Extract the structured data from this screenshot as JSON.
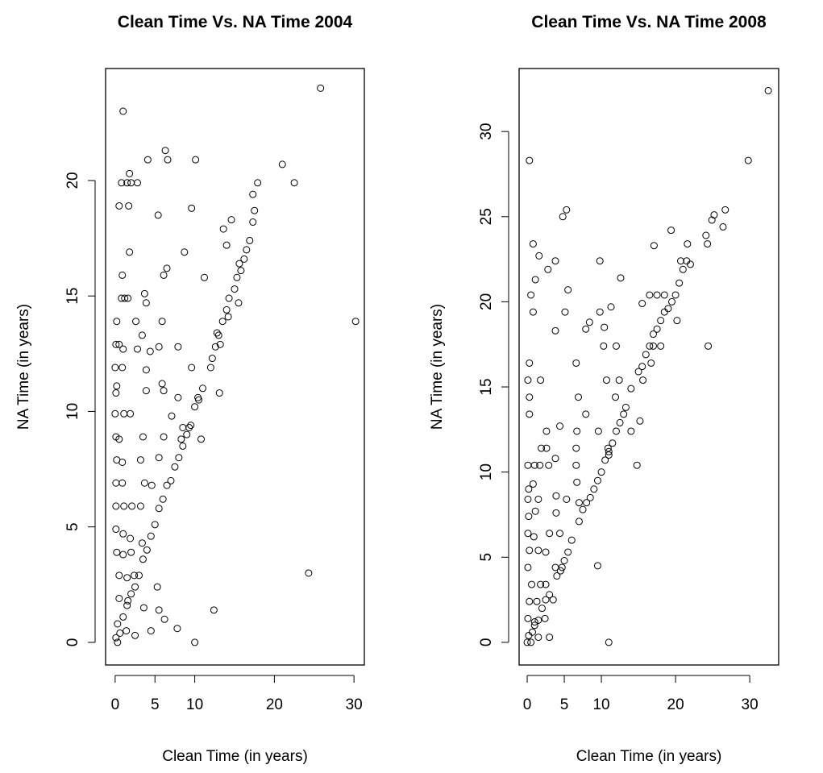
{
  "chart_data": [
    {
      "type": "scatter",
      "title": "Clean Time Vs. NA Time 2004",
      "x_label": "Clean Time (in years)",
      "y_label": "NA Time (in years)",
      "color": "#000000",
      "xlim": [
        -1.2,
        31.3
      ],
      "ylim": [
        -0.98,
        24.85
      ],
      "xticks": [
        0,
        5,
        10,
        20,
        30
      ],
      "yticks": [
        0,
        5,
        10,
        15,
        20
      ],
      "x": [
        25.8,
        30.2,
        21,
        22.5,
        24.3,
        12.4,
        10,
        7.8,
        4.5,
        6.2,
        5.5,
        5.3,
        1,
        6.3,
        4.1,
        6.6,
        10.1,
        1.8,
        0.8,
        1.5,
        2,
        2.8,
        0.5,
        1.7,
        5.4,
        9.6,
        1.8,
        8.7,
        6.5,
        6.1,
        11.2,
        0.9,
        0.8,
        1.2,
        1.6,
        3.7,
        3.9,
        0.2,
        2.6,
        5.9,
        3.4,
        0.1,
        0.5,
        1,
        2.8,
        4.4,
        5.5,
        7.9,
        0,
        0.9,
        3.9,
        9.6,
        0.2,
        5.9,
        6.1,
        0.1,
        3.9,
        7.9,
        10.4,
        13.1,
        0,
        1.1,
        1.9,
        7.1,
        8.5,
        9.3,
        0.1,
        0.5,
        3.5,
        6.1,
        8.3,
        10.8,
        0.2,
        0.9,
        3.2,
        5.5,
        0.1,
        0.9,
        3.7,
        4.6,
        0.1,
        1.1,
        2.1,
        3.2,
        0.1,
        1,
        1.9,
        3.4,
        0.2,
        1,
        2,
        0.5,
        1.5,
        2.4,
        0.5,
        1.6,
        3.6,
        0.3,
        1.4,
        2.5,
        0.1,
        0.3,
        0.6,
        1,
        1.5,
        2,
        2.5,
        3,
        3.5,
        4,
        4.5,
        5,
        5.5,
        6,
        6.5,
        7,
        7.5,
        8,
        8.5,
        9,
        9.5,
        10,
        10.5,
        11,
        12,
        12.2,
        12.6,
        13,
        13.5,
        14,
        14.3,
        15,
        15.3,
        15.8,
        16.2,
        16.5,
        16.9,
        17.3,
        17.5,
        17.3,
        17.9,
        14.6,
        14,
        13.6,
        15.6,
        15.5,
        14.2,
        12.8,
        13.2
      ],
      "y": [
        24,
        13.9,
        20.7,
        19.9,
        3,
        1.4,
        0,
        0.6,
        0.5,
        1,
        1.4,
        2.4,
        23,
        21.3,
        20.9,
        20.9,
        20.9,
        20.3,
        19.9,
        19.9,
        19.9,
        19.9,
        18.9,
        18.9,
        18.5,
        18.8,
        16.9,
        16.9,
        16.2,
        15.9,
        15.8,
        15.9,
        14.9,
        14.9,
        14.9,
        15.1,
        14.7,
        13.9,
        13.9,
        13.9,
        13.3,
        12.9,
        12.9,
        12.7,
        12.7,
        12.6,
        12.8,
        12.8,
        11.9,
        11.9,
        11.8,
        11.9,
        11.1,
        11.2,
        10.9,
        10.8,
        10.9,
        10.6,
        10.6,
        10.8,
        9.9,
        9.9,
        9.9,
        9.8,
        9.3,
        9.3,
        8.9,
        8.8,
        8.9,
        8.9,
        8.8,
        8.8,
        7.9,
        7.8,
        7.9,
        8,
        6.9,
        6.9,
        6.9,
        6.8,
        5.9,
        5.9,
        5.9,
        5.9,
        4.9,
        4.7,
        4.5,
        4.3,
        3.9,
        3.8,
        3.9,
        2.9,
        2.8,
        2.9,
        1.9,
        1.8,
        1.5,
        0.8,
        0.5,
        0.3,
        0.2,
        0,
        0.4,
        1.1,
        1.6,
        2.1,
        2.4,
        2.9,
        3.6,
        4,
        4.6,
        5.1,
        5.8,
        6.2,
        6.8,
        7,
        7.6,
        8,
        8.5,
        9,
        9.4,
        10.2,
        10.5,
        11,
        11.9,
        12.3,
        12.8,
        13.3,
        13.9,
        14.4,
        14.9,
        15.3,
        15.8,
        16.1,
        16.6,
        17,
        17.4,
        18.2,
        18.7,
        19.4,
        19.9,
        18.3,
        17.2,
        17.9,
        16.4,
        14.7,
        14.1,
        13.4,
        12.9
      ]
    },
    {
      "type": "scatter",
      "title": "Clean Time Vs. NA Time 2008",
      "x_label": "Clean Time (in years)",
      "y_label": "NA Time (in years)",
      "color": "#000000",
      "xlim": [
        -1.09,
        33.9
      ],
      "ylim": [
        -1.33,
        33.7
      ],
      "xticks": [
        0,
        5,
        10,
        20,
        30
      ],
      "yticks": [
        0,
        5,
        10,
        15,
        20,
        25,
        30
      ],
      "x": [
        32.5,
        29.8,
        0.3,
        5.3,
        4.8,
        26.7,
        25.2,
        24.9,
        26.4,
        24.1,
        24.3,
        24.4,
        21.6,
        19.4,
        17.1,
        0.8,
        3.8,
        9.8,
        1.6,
        2.8,
        12.6,
        5.5,
        0.5,
        1.1,
        0.8,
        5.1,
        9.8,
        11.3,
        15.5,
        3.8,
        7.9,
        10.4,
        8.4,
        12,
        10.3,
        0.3,
        6.6,
        0.1,
        1.8,
        10.7,
        12.4,
        0.3,
        6.9,
        11.9,
        0.3,
        7.9,
        2.6,
        4.4,
        6.7,
        9.6,
        14,
        15.2,
        1.9,
        2.6,
        6.6,
        10.9,
        0.1,
        1,
        1.7,
        2.9,
        3.8,
        6.6,
        14.8,
        0.2,
        0.8,
        6.7,
        0.1,
        1.5,
        3.9,
        5.3,
        0.2,
        1.1,
        3.9,
        0.1,
        0.9,
        3,
        4.4,
        0.3,
        1.5,
        2.5,
        3.8,
        9.5,
        0.1,
        0.6,
        1.8,
        2.5,
        0.3,
        1.3,
        0.1,
        1,
        2.4,
        0.2,
        0.7,
        1.5,
        3,
        0,
        0.5,
        11,
        4.7,
        1,
        2,
        3,
        4,
        5,
        6,
        7,
        7.5,
        8,
        9,
        9.5,
        10,
        10.5,
        11,
        11.5,
        12,
        12.5,
        13,
        13.3,
        14,
        15,
        15.5,
        16,
        16.5,
        17,
        17.5,
        18,
        18.5,
        19,
        19.5,
        20,
        20.5,
        21,
        21.5,
        22,
        20.7,
        17.5,
        18.5,
        16.5,
        18,
        17,
        20.2,
        15.6,
        16.7,
        7,
        8.5,
        11,
        3.5,
        4.5,
        5.5,
        2.5,
        1.5
      ],
      "y": [
        32.4,
        28.3,
        28.3,
        25.4,
        25,
        25.4,
        25.1,
        24.8,
        24.4,
        23.9,
        23.4,
        17.4,
        23.4,
        24.2,
        23.3,
        23.4,
        22.4,
        22.4,
        22.7,
        21.9,
        21.4,
        20.7,
        20.4,
        21.3,
        19.4,
        19.4,
        19.4,
        19.7,
        19.9,
        18.3,
        18.4,
        18.5,
        18.8,
        17.4,
        17.4,
        16.4,
        16.4,
        15.4,
        15.4,
        15.4,
        15.4,
        14.4,
        14.4,
        14.4,
        13.4,
        13.4,
        12.4,
        12.7,
        12.4,
        12.4,
        12.4,
        13,
        11.4,
        11.4,
        11.4,
        11.4,
        10.4,
        10.4,
        10.4,
        10.4,
        10.8,
        10.4,
        10.4,
        9,
        9.3,
        9.4,
        8.4,
        8.4,
        8.6,
        8.4,
        7.4,
        7.7,
        7.6,
        6.4,
        6.2,
        6.4,
        6.4,
        5.4,
        5.4,
        5.3,
        4.4,
        4.5,
        4.4,
        3.4,
        3.4,
        3.4,
        2.4,
        2.4,
        1.4,
        1.2,
        1.4,
        0.4,
        0.6,
        0.3,
        0.3,
        0,
        0,
        0,
        4.4,
        1,
        2,
        2.8,
        3.9,
        4.8,
        6,
        7.1,
        7.8,
        8.2,
        9,
        9.5,
        10,
        10.7,
        11.2,
        11.7,
        12.4,
        12.9,
        13.4,
        13.8,
        14.9,
        15.9,
        16.2,
        16.9,
        17.4,
        18.1,
        18.4,
        18.9,
        19.4,
        19.6,
        20,
        20.4,
        21.1,
        21.9,
        22.4,
        22.2,
        22.4,
        20.4,
        20.4,
        20.4,
        17.4,
        17.4,
        18.9,
        15.4,
        16.4,
        8.2,
        8.5,
        11,
        2.5,
        4.2,
        5.3,
        2.5,
        1.3
      ]
    }
  ]
}
